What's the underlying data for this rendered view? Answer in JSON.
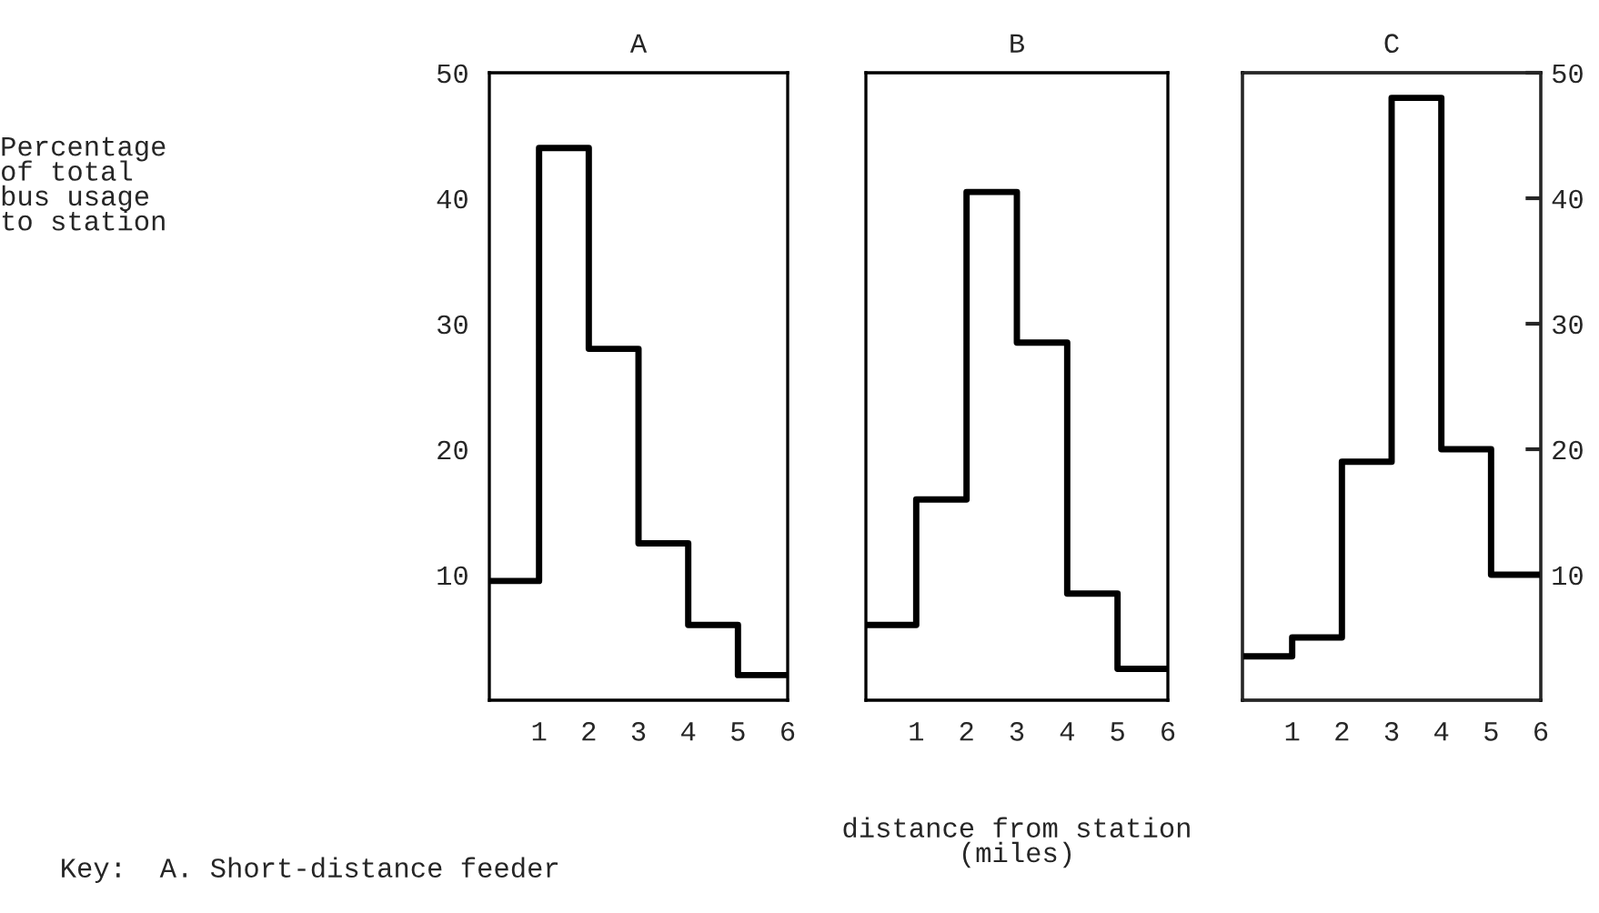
{
  "chart_data": [
    {
      "type": "histogram",
      "title": "A",
      "ylabel": "Percentage\nof total\nbus usage\nto station",
      "annotations": [
        "Key:  A. Short-distance feeder"
      ],
      "bins": [
        0,
        1,
        2,
        3,
        4,
        5,
        6
      ],
      "series": [
        {
          "color": "#000000",
          "values": [
            9.5,
            44,
            28,
            12.5,
            6,
            2
          ]
        }
      ],
      "xlim": [
        0,
        6
      ],
      "xticks": [
        1,
        2,
        3,
        4,
        5,
        6
      ],
      "ylim": [
        0,
        50
      ],
      "yticks": [
        10,
        20,
        30,
        40,
        50
      ]
    },
    {
      "type": "histogram",
      "title": "B",
      "xlabel": "distance from station\n(miles)",
      "bins": [
        0,
        1,
        2,
        3,
        4,
        5,
        6
      ],
      "series": [
        {
          "color": "#000000",
          "values": [
            6,
            16,
            40.5,
            28.5,
            8.5,
            2.5
          ]
        }
      ],
      "xlim": [
        0,
        6
      ],
      "xticks": [
        1,
        2,
        3,
        4,
        5,
        6
      ],
      "ylim": [
        0,
        50
      ],
      "tick_labels": "x"
    },
    {
      "type": "histogram",
      "title": "C",
      "bins": [
        0,
        1,
        2,
        3,
        4,
        5,
        6
      ],
      "series": [
        {
          "color": "#000000",
          "values": [
            3.5,
            5,
            19,
            48,
            20,
            10
          ],
          "axis": "y2"
        }
      ],
      "xlim": [
        0,
        6
      ],
      "xticks": [
        1,
        2,
        3,
        4,
        5,
        6
      ],
      "y2lim": [
        0,
        50
      ],
      "y2ticks": [
        10,
        20,
        30,
        40,
        50
      ]
    }
  ]
}
